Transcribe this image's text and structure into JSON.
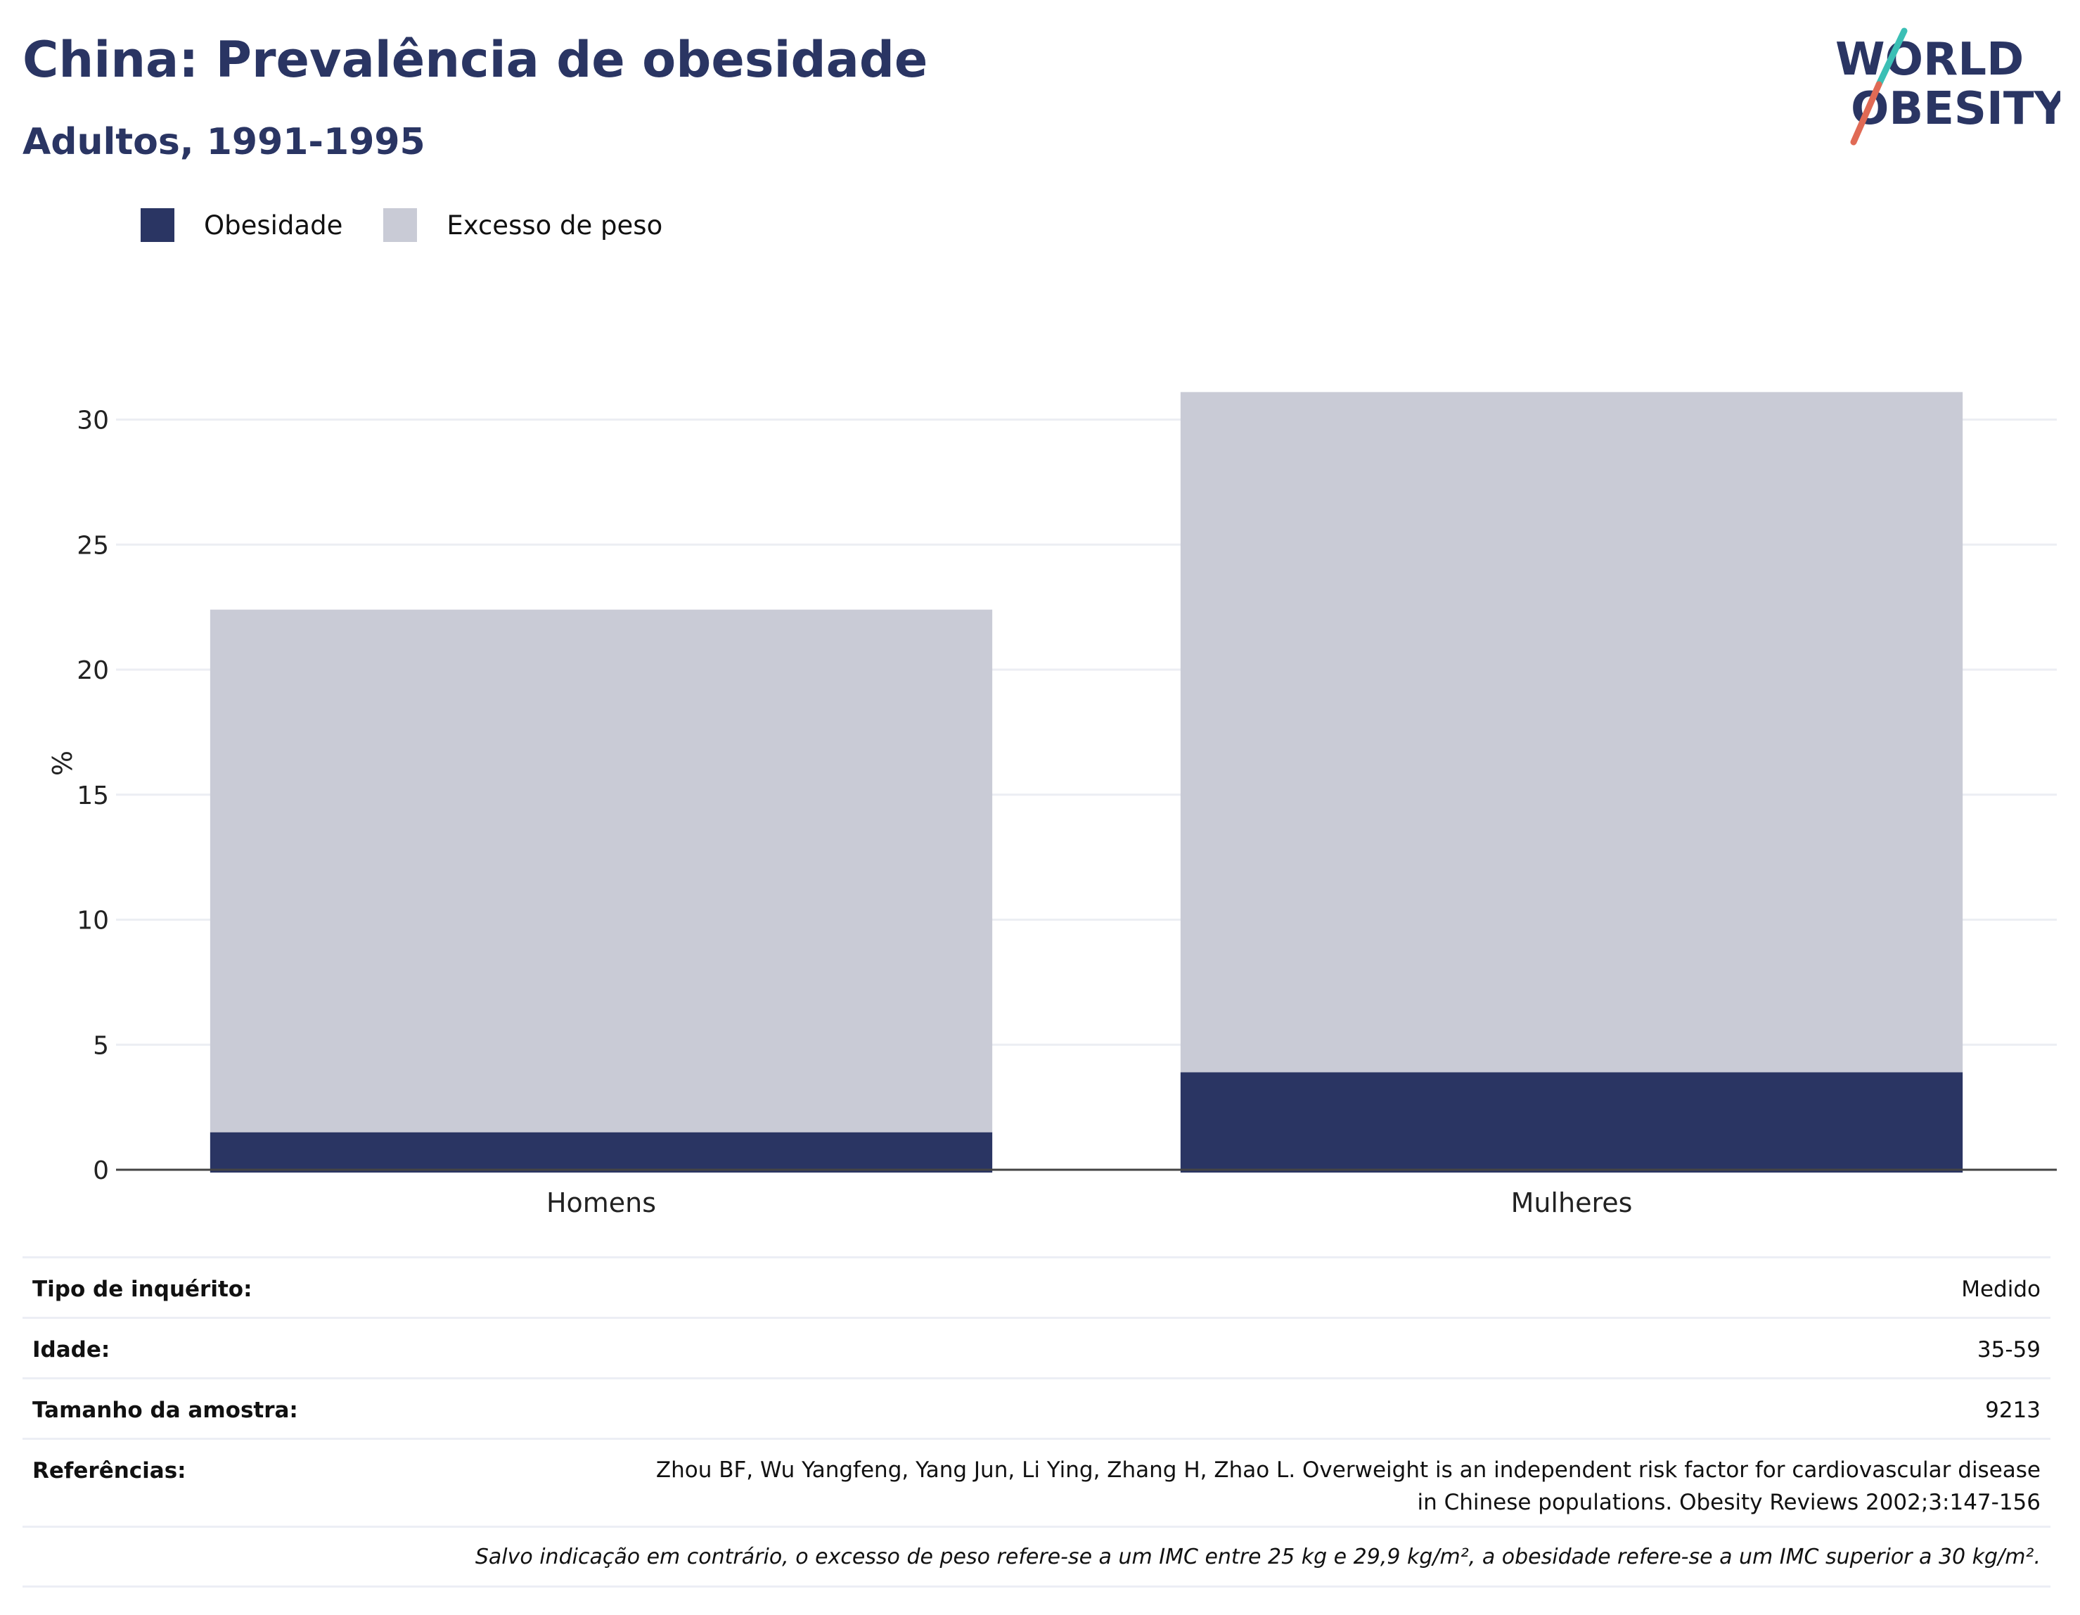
{
  "header": {
    "title": "China: Prevalência de obesidade",
    "subtitle": "Adultos, 1991-1995"
  },
  "logo": {
    "line1": "WORLD",
    "line2": "OBESITY"
  },
  "legend": [
    {
      "label": "Obesidade",
      "color": "#2a3563"
    },
    {
      "label": "Excesso de peso",
      "color": "#c9cbd6"
    }
  ],
  "chart_data": {
    "type": "bar",
    "stacked": true,
    "categories": [
      "Homens",
      "Mulheres"
    ],
    "series": [
      {
        "name": "Obesidade",
        "values": [
          1.5,
          3.9
        ],
        "color": "#2a3563"
      },
      {
        "name": "Excesso de peso",
        "values": [
          20.9,
          27.2
        ],
        "color": "#c9cbd6"
      }
    ],
    "ylabel": "%",
    "ylim": [
      0,
      32
    ],
    "yticks": [
      0,
      5,
      10,
      15,
      20,
      25,
      30
    ],
    "grid": true,
    "legend_position": "top-left"
  },
  "info": {
    "survey_type": {
      "label": "Tipo de inquérito:",
      "value": "Medido"
    },
    "age": {
      "label": "Idade:",
      "value": "35-59"
    },
    "sample_size": {
      "label": "Tamanho da amostra:",
      "value": "9213"
    },
    "references": {
      "label": "Referências:",
      "value": "Zhou BF, Wu Yangfeng, Yang Jun, Li Ying, Zhang H, Zhao L. Overweight is an independent risk factor for cardiovascular disease in Chinese populations. Obesity Reviews 2002;3:147-156"
    },
    "note": "Salvo indicação em contrário, o excesso de peso refere-se a um IMC entre 25 kg e 29,9 kg/m², a obesidade refere-se a um IMC superior a 30 kg/m²."
  }
}
